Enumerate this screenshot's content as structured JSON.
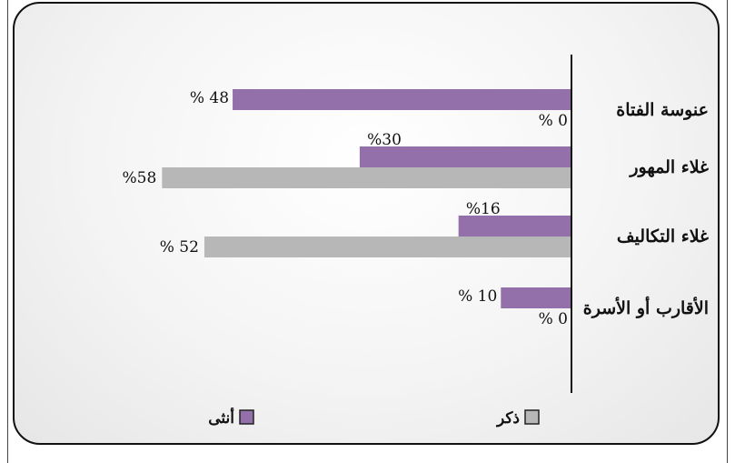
{
  "chart_data": {
    "type": "bar",
    "orientation": "horizontal",
    "categories": [
      "عنوسة الفتاة",
      "غلاء المهور",
      "غلاء التكاليف",
      "الأقارب أو الأسرة"
    ],
    "series": [
      {
        "name": "أنثى",
        "color": "#9470aa",
        "values": [
          48,
          30,
          16,
          10
        ],
        "labels": [
          "% 48",
          "%30",
          "%16",
          "% 10"
        ]
      },
      {
        "name": "ذكر",
        "color": "#b7b7b7",
        "values": [
          0,
          58,
          52,
          0
        ],
        "labels": [
          "% 0",
          "%58",
          "% 52",
          "% 0"
        ]
      }
    ],
    "xlim": [
      0,
      60
    ],
    "legend_position": "bottom",
    "grid": false
  }
}
